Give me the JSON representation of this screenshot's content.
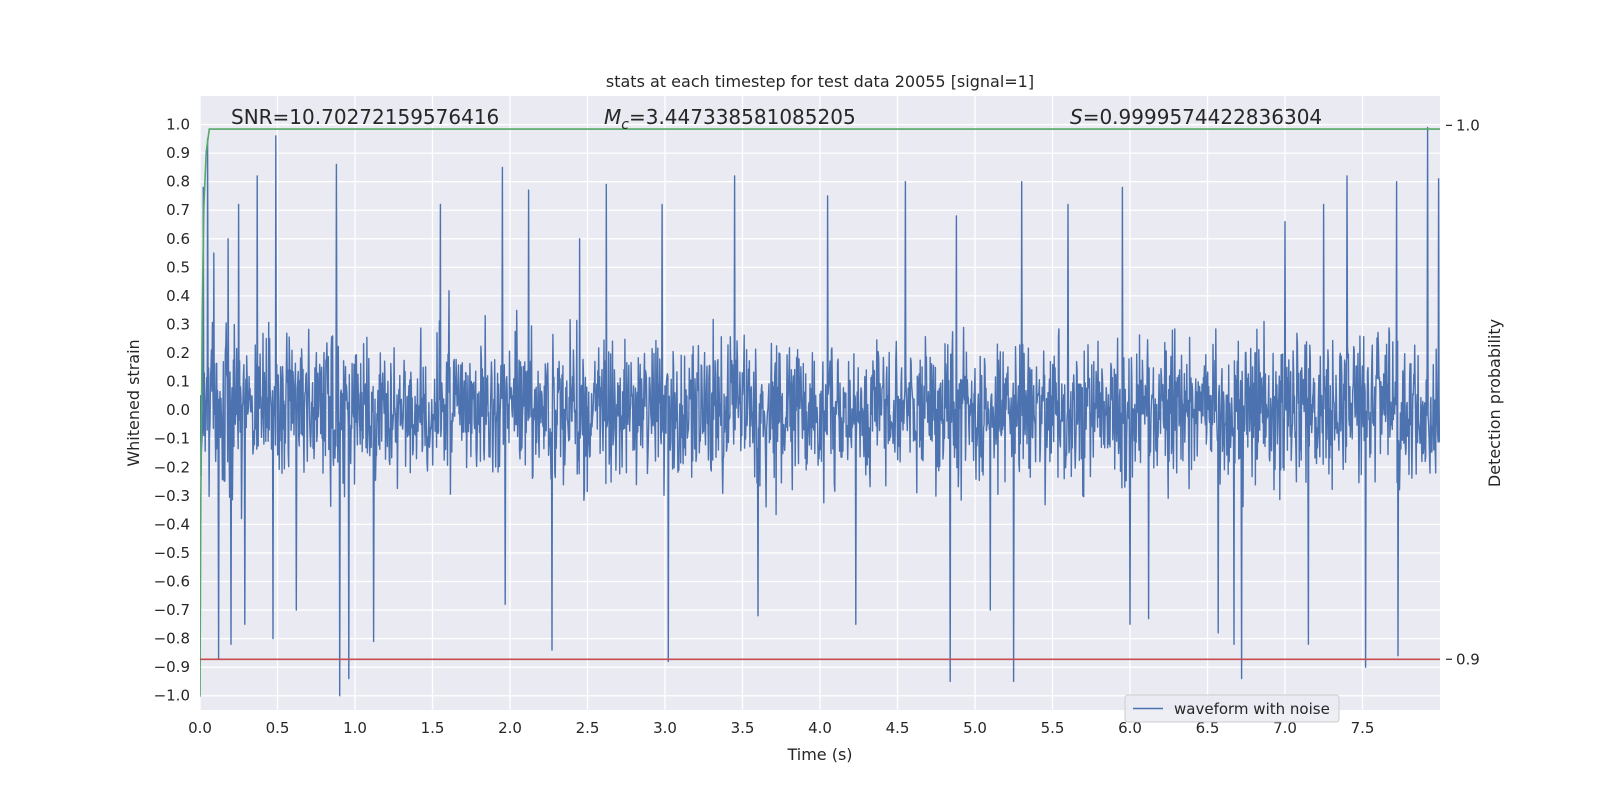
{
  "chart_data": {
    "type": "line",
    "title": "stats at each timestep for test data 20055 [signal=1]",
    "xlabel": "Time (s)",
    "ylabel": "Whitened strain",
    "y2label": "Detection probability",
    "xlim": [
      0,
      8
    ],
    "ylim": [
      -1.05,
      1.1
    ],
    "y2lim": [
      0.8905,
      1.0055
    ],
    "x_ticks": [
      "0.0",
      "0.5",
      "1.0",
      "1.5",
      "2.0",
      "2.5",
      "3.0",
      "3.5",
      "4.0",
      "4.5",
      "5.0",
      "5.5",
      "6.0",
      "6.5",
      "7.0",
      "7.5"
    ],
    "y_ticks": [
      "1.0",
      "0.9",
      "0.8",
      "0.7",
      "0.6",
      "0.5",
      "0.4",
      "0.3",
      "0.2",
      "0.1",
      "0.0",
      "−0.1",
      "−0.2",
      "−0.3",
      "−0.4",
      "−0.5",
      "−0.6",
      "−0.7",
      "−0.8",
      "−0.9",
      "−1.0"
    ],
    "y2_ticks": [
      "1.0",
      "0.9"
    ],
    "grid": true,
    "legend": {
      "position": "bottom-right",
      "entries": [
        "waveform with noise"
      ]
    },
    "annotations": {
      "snr": "SNR=10.70272159576416",
      "mc_prefix": "M",
      "mc_sub": "c",
      "mc_value": "=3.447338581085205",
      "s_prefix": "S",
      "s_value": "=0.9999574422836304"
    },
    "series": [
      {
        "name": "waveform with noise",
        "axis": "left",
        "color": "#4c72b0",
        "sample_rate_hz": 2048,
        "description_values": {
          "envelope_approx": 0.45,
          "max": 0.99,
          "min": -1.0
        },
        "peaks": [
          {
            "x": 0.02,
            "y": 0.78
          },
          {
            "x": 0.05,
            "y": 0.95
          },
          {
            "x": 0.09,
            "y": 0.55
          },
          {
            "x": 0.12,
            "y": -0.87
          },
          {
            "x": 0.18,
            "y": 0.6
          },
          {
            "x": 0.2,
            "y": -0.82
          },
          {
            "x": 0.25,
            "y": 0.72
          },
          {
            "x": 0.29,
            "y": -0.75
          },
          {
            "x": 0.37,
            "y": 0.82
          },
          {
            "x": 0.47,
            "y": -0.8
          },
          {
            "x": 0.49,
            "y": 0.96
          },
          {
            "x": 0.62,
            "y": -0.7
          },
          {
            "x": 0.88,
            "y": 0.86
          },
          {
            "x": 0.9,
            "y": -1.0
          },
          {
            "x": 0.96,
            "y": -0.94
          },
          {
            "x": 1.12,
            "y": -0.81
          },
          {
            "x": 1.55,
            "y": 0.72
          },
          {
            "x": 1.95,
            "y": 0.85
          },
          {
            "x": 1.97,
            "y": -0.68
          },
          {
            "x": 2.12,
            "y": 0.77
          },
          {
            "x": 2.27,
            "y": -0.84
          },
          {
            "x": 2.45,
            "y": 0.6
          },
          {
            "x": 2.62,
            "y": 0.79
          },
          {
            "x": 2.98,
            "y": 0.72
          },
          {
            "x": 3.02,
            "y": -0.88
          },
          {
            "x": 3.45,
            "y": 0.82
          },
          {
            "x": 3.6,
            "y": -0.72
          },
          {
            "x": 4.05,
            "y": 0.75
          },
          {
            "x": 4.23,
            "y": -0.75
          },
          {
            "x": 4.55,
            "y": 0.8
          },
          {
            "x": 4.84,
            "y": -0.95
          },
          {
            "x": 4.88,
            "y": 0.68
          },
          {
            "x": 5.1,
            "y": -0.7
          },
          {
            "x": 5.25,
            "y": -0.95
          },
          {
            "x": 5.3,
            "y": 0.8
          },
          {
            "x": 5.6,
            "y": 0.72
          },
          {
            "x": 5.95,
            "y": 0.78
          },
          {
            "x": 6.0,
            "y": -0.75
          },
          {
            "x": 6.12,
            "y": -0.73
          },
          {
            "x": 6.57,
            "y": -0.78
          },
          {
            "x": 6.67,
            "y": -0.82
          },
          {
            "x": 6.72,
            "y": -0.94
          },
          {
            "x": 7.0,
            "y": 0.66
          },
          {
            "x": 7.15,
            "y": -0.82
          },
          {
            "x": 7.25,
            "y": 0.72
          },
          {
            "x": 7.4,
            "y": 0.82
          },
          {
            "x": 7.52,
            "y": -0.9
          },
          {
            "x": 7.72,
            "y": 0.8
          },
          {
            "x": 7.73,
            "y": -0.86
          },
          {
            "x": 7.92,
            "y": 0.99
          },
          {
            "x": 7.99,
            "y": 0.81
          }
        ]
      },
      {
        "name": "",
        "axis": "right",
        "color": "#55a868",
        "x": [
          0.0,
          0.005,
          0.015,
          0.025,
          0.04,
          0.06,
          8.0
        ],
        "y": [
          0.893,
          0.93,
          0.965,
          0.985,
          0.995,
          0.9993,
          0.9993
        ]
      },
      {
        "name": "",
        "axis": "right",
        "type": "hline",
        "color": "#c44e52",
        "y": 0.9
      }
    ]
  }
}
